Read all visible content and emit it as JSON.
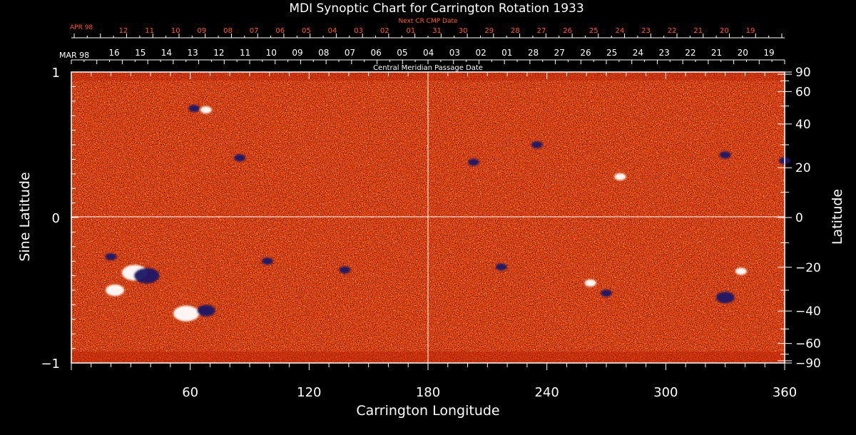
{
  "chart_data": {
    "type": "heatmap",
    "title": "MDI Synoptic Chart for Carrington Rotation 1933",
    "xlabel": "Carrington Longitude",
    "ylabel_left": "Sine Latitude",
    "ylabel_right": "Latitude",
    "xlim": [
      0,
      360
    ],
    "ylim": [
      -1,
      1
    ],
    "x_ticks": [
      60,
      120,
      180,
      240,
      300,
      360
    ],
    "left_ticks": [
      {
        "value": 1,
        "label": "1"
      },
      {
        "value": 0,
        "label": "0"
      },
      {
        "value": -1,
        "label": "−1"
      }
    ],
    "right_ticks": [
      {
        "deg": 90,
        "label": "90"
      },
      {
        "deg": 60,
        "label": "60"
      },
      {
        "deg": 40,
        "label": "40"
      },
      {
        "deg": 20,
        "label": "20"
      },
      {
        "deg": 0,
        "label": "0"
      },
      {
        "deg": -20,
        "label": "−20"
      },
      {
        "deg": -40,
        "label": "−40"
      },
      {
        "deg": -60,
        "label": "−60"
      },
      {
        "deg": -90,
        "label": "−90"
      }
    ],
    "top_axis_title": "Central Meridian Passage Date",
    "top_axis_month": "MAR 98",
    "top_axis_dates": [
      "16",
      "15",
      "14",
      "13",
      "12",
      "11",
      "10",
      "09",
      "08",
      "07",
      "06",
      "05",
      "04",
      "03",
      "02",
      "01",
      "28",
      "27",
      "26",
      "25",
      "24",
      "23",
      "22",
      "21",
      "20",
      "19"
    ],
    "next_axis_title": "Next CR CMP Date",
    "next_axis_month": "APR 98",
    "next_axis_dates": [
      "12",
      "11",
      "10",
      "09",
      "08",
      "07",
      "06",
      "05",
      "04",
      "03",
      "02",
      "01",
      "31",
      "30",
      "29",
      "28",
      "27",
      "26",
      "25",
      "24",
      "23",
      "22",
      "21",
      "20",
      "19"
    ],
    "colors": {
      "background": "#000000",
      "field_base": "#ff4a10",
      "positive": "#ffffff",
      "negative": "#1a1466",
      "axis": "#ffffff",
      "next_axis": "#ff5a2a"
    },
    "active_regions": [
      {
        "lon": 62,
        "lat": 0.75,
        "polarity": "negative",
        "size": "small"
      },
      {
        "lon": 68,
        "lat": 0.74,
        "polarity": "positive",
        "size": "small"
      },
      {
        "lon": 85,
        "lat": 0.41,
        "polarity": "negative",
        "size": "small"
      },
      {
        "lon": 203,
        "lat": 0.38,
        "polarity": "negative",
        "size": "small"
      },
      {
        "lon": 235,
        "lat": 0.5,
        "polarity": "negative",
        "size": "small"
      },
      {
        "lon": 277,
        "lat": 0.28,
        "polarity": "positive",
        "size": "small"
      },
      {
        "lon": 330,
        "lat": 0.43,
        "polarity": "negative",
        "size": "small"
      },
      {
        "lon": 360,
        "lat": 0.39,
        "polarity": "negative",
        "size": "small"
      },
      {
        "lon": 20,
        "lat": -0.27,
        "polarity": "negative",
        "size": "small"
      },
      {
        "lon": 32,
        "lat": -0.38,
        "polarity": "positive",
        "size": "large"
      },
      {
        "lon": 38,
        "lat": -0.4,
        "polarity": "negative",
        "size": "large"
      },
      {
        "lon": 22,
        "lat": -0.5,
        "polarity": "positive",
        "size": "medium"
      },
      {
        "lon": 58,
        "lat": -0.66,
        "polarity": "positive",
        "size": "large"
      },
      {
        "lon": 68,
        "lat": -0.64,
        "polarity": "negative",
        "size": "medium"
      },
      {
        "lon": 99,
        "lat": -0.3,
        "polarity": "negative",
        "size": "small"
      },
      {
        "lon": 138,
        "lat": -0.36,
        "polarity": "negative",
        "size": "small"
      },
      {
        "lon": 217,
        "lat": -0.34,
        "polarity": "negative",
        "size": "small"
      },
      {
        "lon": 262,
        "lat": -0.45,
        "polarity": "positive",
        "size": "small"
      },
      {
        "lon": 270,
        "lat": -0.52,
        "polarity": "negative",
        "size": "small"
      },
      {
        "lon": 330,
        "lat": -0.55,
        "polarity": "negative",
        "size": "medium"
      },
      {
        "lon": 338,
        "lat": -0.37,
        "polarity": "positive",
        "size": "small"
      }
    ]
  }
}
